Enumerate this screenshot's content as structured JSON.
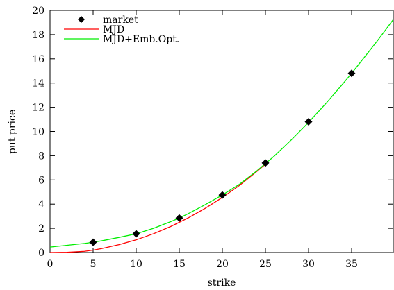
{
  "chart_data": {
    "type": "line",
    "title": "",
    "xlabel": "strike",
    "ylabel": "put price",
    "xlim": [
      0,
      40
    ],
    "ylim": [
      0,
      20
    ],
    "xticks": [
      0,
      5,
      10,
      15,
      20,
      25,
      30,
      35
    ],
    "yticks": [
      0,
      2,
      4,
      6,
      8,
      10,
      12,
      14,
      16,
      18,
      20
    ],
    "grid": false,
    "legend_position": "top-left",
    "series": [
      {
        "name": "market",
        "kind": "scatter",
        "marker": "diamond",
        "color": "#000000",
        "points": [
          [
            5,
            0.85
          ],
          [
            10,
            1.55
          ],
          [
            15,
            2.85
          ],
          [
            20,
            4.75
          ],
          [
            25,
            7.4
          ],
          [
            30,
            10.8
          ],
          [
            35,
            14.8
          ]
        ]
      },
      {
        "name": "MJD",
        "kind": "line",
        "color": "#ff0000",
        "points": [
          [
            0,
            0.0
          ],
          [
            2,
            0.02
          ],
          [
            4,
            0.1
          ],
          [
            5,
            0.2
          ],
          [
            6,
            0.33
          ],
          [
            8,
            0.65
          ],
          [
            10,
            1.05
          ],
          [
            12,
            1.55
          ],
          [
            14,
            2.15
          ],
          [
            15,
            2.5
          ],
          [
            16,
            2.85
          ],
          [
            18,
            3.65
          ],
          [
            20,
            4.55
          ],
          [
            22,
            5.55
          ],
          [
            24,
            6.7
          ],
          [
            25,
            7.3
          ]
        ]
      },
      {
        "name": "MJD+Emb.Opt.",
        "kind": "line",
        "color": "#00ee00",
        "points": [
          [
            0,
            0.45
          ],
          [
            2,
            0.6
          ],
          [
            4,
            0.75
          ],
          [
            5,
            0.85
          ],
          [
            6,
            0.97
          ],
          [
            8,
            1.25
          ],
          [
            10,
            1.55
          ],
          [
            12,
            2.0
          ],
          [
            14,
            2.55
          ],
          [
            15,
            2.85
          ],
          [
            16,
            3.2
          ],
          [
            18,
            3.95
          ],
          [
            20,
            4.75
          ],
          [
            22,
            5.65
          ],
          [
            24,
            6.75
          ],
          [
            25,
            7.35
          ],
          [
            26,
            7.95
          ],
          [
            28,
            9.3
          ],
          [
            30,
            10.75
          ],
          [
            32,
            12.3
          ],
          [
            34,
            13.95
          ],
          [
            35,
            14.8
          ],
          [
            36,
            15.7
          ],
          [
            38,
            17.5
          ],
          [
            40,
            19.4
          ]
        ]
      }
    ]
  }
}
